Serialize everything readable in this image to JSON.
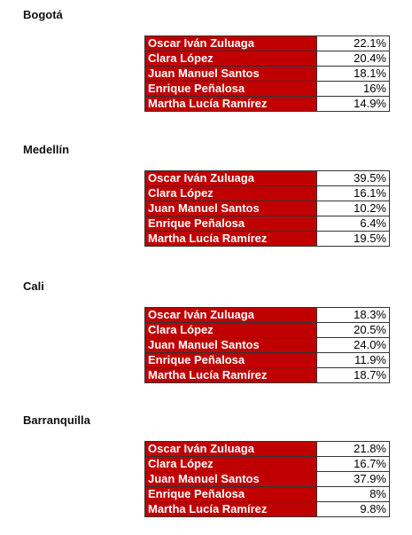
{
  "cities": [
    {
      "name": "Bogotá",
      "rows": [
        {
          "candidate": "Oscar Iván Zuluaga",
          "percent": "22.1%"
        },
        {
          "candidate": "Clara López",
          "percent": "20.4%"
        },
        {
          "candidate": "Juan Manuel Santos",
          "percent": "18.1%"
        },
        {
          "candidate": "Enrique Peñalosa",
          "percent": "16%"
        },
        {
          "candidate": "Martha Lucía Ramírez",
          "percent": "14.9%"
        }
      ]
    },
    {
      "name": "Medellín",
      "rows": [
        {
          "candidate": "Oscar Iván Zuluaga",
          "percent": "39.5%"
        },
        {
          "candidate": "Clara López",
          "percent": "16.1%"
        },
        {
          "candidate": "Juan Manuel Santos",
          "percent": "10.2%"
        },
        {
          "candidate": "Enrique Peñalosa",
          "percent": "6.4%"
        },
        {
          "candidate": "Martha Lucía Ramírez",
          "percent": "19.5%"
        }
      ]
    },
    {
      "name": "Cali",
      "rows": [
        {
          "candidate": "Oscar Iván Zuluaga",
          "percent": "18.3%"
        },
        {
          "candidate": "Clara López",
          "percent": "20.5%"
        },
        {
          "candidate": "Juan Manuel Santos",
          "percent": "24.0%"
        },
        {
          "candidate": "Enrique Peñalosa",
          "percent": "11.9%"
        },
        {
          "candidate": "Martha Lucía Ramírez",
          "percent": "18.7%"
        }
      ]
    },
    {
      "name": "Barranquilla",
      "rows": [
        {
          "candidate": "Oscar Iván Zuluaga",
          "percent": "21.8%"
        },
        {
          "candidate": "Clara López",
          "percent": "16.7%"
        },
        {
          "candidate": "Juan Manuel Santos",
          "percent": "37.9%"
        },
        {
          "candidate": "Enrique Peñalosa",
          "percent": "8%"
        },
        {
          "candidate": "Martha Lucía Ramírez",
          "percent": "9.8%"
        }
      ]
    }
  ]
}
